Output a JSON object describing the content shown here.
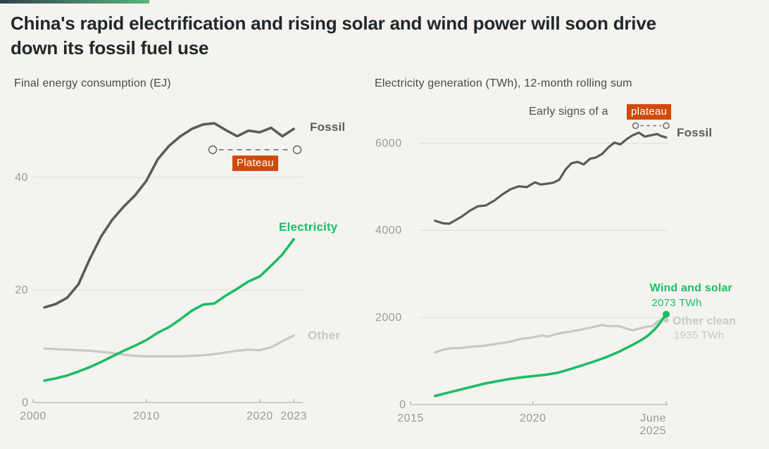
{
  "title": "China's rapid electrification and rising solar and wind power will soon drive\ndown its fossil fuel use",
  "colors": {
    "background": "#f4f3f0",
    "accent_from": "#32414d",
    "accent_to": "#56b77d",
    "gridline": "#dddcd9",
    "axis_line": "#a6a5a2",
    "axis_text": "#9b9a97",
    "annotation": "#6f6f6d",
    "fossil_line": "#5b5b5b",
    "green_line": "#1dbd63",
    "light_line": "#c9c8c5",
    "plateau_badge_bg": "#d14a0c",
    "plateau_badge_text": "#ffffff"
  },
  "charts": {
    "left": {
      "subtitle": "Final energy consumption (EJ)",
      "badge": "Plateau",
      "labels": {
        "fossil": "Fossil",
        "electricity": "Electricity",
        "other": "Other"
      }
    },
    "right": {
      "subtitle": "Electricity generation (TWh), 12-month rolling sum",
      "annotation_prefix": "Early signs of a",
      "badge": "plateau",
      "labels": {
        "fossil": "Fossil",
        "wind_solar": "Wind and solar",
        "wind_solar_value": "2073 TWh",
        "other_clean": "Other clean",
        "other_clean_value": "1935 TWh"
      }
    }
  },
  "chart_data": [
    {
      "type": "line",
      "title": "Final energy consumption (EJ)",
      "x_domain": [
        2000,
        2023.8
      ],
      "y_domain": [
        0,
        51.5
      ],
      "grid": true,
      "zero_label": "0",
      "x_ticks": [
        {
          "value": 2000,
          "label": "2000"
        },
        {
          "value": 2010,
          "label": "2010"
        },
        {
          "value": 2020,
          "label": "2020"
        },
        {
          "value": 2023,
          "label": "2023"
        }
      ],
      "y_ticks": [
        {
          "value": 20,
          "label": "20"
        },
        {
          "value": 40,
          "label": "40"
        }
      ],
      "plateau_line": {
        "x1": 2015.85,
        "x2": 2023.3,
        "y": 44.9,
        "r": 5.5,
        "dash": "7 6"
      },
      "series": [
        {
          "id": "other",
          "name": "Other",
          "color": "#c9c8c5",
          "width": 3.2,
          "points": [
            [
              2001,
              9.6
            ],
            [
              2002,
              9.5
            ],
            [
              2003,
              9.4
            ],
            [
              2004,
              9.3
            ],
            [
              2005,
              9.2
            ],
            [
              2006,
              9.0
            ],
            [
              2007,
              8.8
            ],
            [
              2008,
              8.5
            ],
            [
              2009,
              8.3
            ],
            [
              2010,
              8.2
            ],
            [
              2011,
              8.2
            ],
            [
              2012,
              8.2
            ],
            [
              2013,
              8.2
            ],
            [
              2014,
              8.3
            ],
            [
              2015,
              8.4
            ],
            [
              2016,
              8.6
            ],
            [
              2017,
              8.9
            ],
            [
              2018,
              9.2
            ],
            [
              2019,
              9.4
            ],
            [
              2020,
              9.3
            ],
            [
              2021,
              9.8
            ],
            [
              2022,
              10.9
            ],
            [
              2023,
              11.9
            ]
          ]
        },
        {
          "id": "electricity",
          "name": "Electricity",
          "color": "#1dbd63",
          "width": 3.6,
          "points": [
            [
              2001,
              3.9
            ],
            [
              2002,
              4.3
            ],
            [
              2003,
              4.8
            ],
            [
              2004,
              5.5
            ],
            [
              2005,
              6.3
            ],
            [
              2006,
              7.2
            ],
            [
              2007,
              8.2
            ],
            [
              2008,
              9.2
            ],
            [
              2009,
              10.1
            ],
            [
              2010,
              11.1
            ],
            [
              2011,
              12.4
            ],
            [
              2012,
              13.4
            ],
            [
              2013,
              14.8
            ],
            [
              2014,
              16.3
            ],
            [
              2015,
              17.4
            ],
            [
              2016,
              17.6
            ],
            [
              2017,
              19.0
            ],
            [
              2018,
              20.2
            ],
            [
              2019,
              21.5
            ],
            [
              2020,
              22.4
            ],
            [
              2021,
              24.3
            ],
            [
              2022,
              26.3
            ],
            [
              2023,
              29.0
            ]
          ]
        },
        {
          "id": "fossil",
          "name": "Fossil",
          "color": "#5b5b5b",
          "width": 3.6,
          "points": [
            [
              2001,
              16.9
            ],
            [
              2002,
              17.5
            ],
            [
              2003,
              18.6
            ],
            [
              2004,
              21.0
            ],
            [
              2005,
              25.5
            ],
            [
              2006,
              29.5
            ],
            [
              2007,
              32.5
            ],
            [
              2008,
              34.8
            ],
            [
              2009,
              36.8
            ],
            [
              2010,
              39.4
            ],
            [
              2011,
              43.2
            ],
            [
              2012,
              45.6
            ],
            [
              2013,
              47.3
            ],
            [
              2014,
              48.6
            ],
            [
              2015,
              49.4
            ],
            [
              2016,
              49.6
            ],
            [
              2017,
              48.4
            ],
            [
              2018,
              47.3
            ],
            [
              2019,
              48.3
            ],
            [
              2020,
              48.0
            ],
            [
              2021,
              48.8
            ],
            [
              2022,
              47.3
            ],
            [
              2023,
              48.6
            ]
          ]
        }
      ]
    },
    {
      "type": "line",
      "title": "Electricity generation (TWh), 12-month rolling sum",
      "x_domain": [
        2015,
        2025.45
      ],
      "y_domain": [
        0,
        6700
      ],
      "grid": true,
      "zero_label": "0",
      "x_ticks": [
        {
          "value": 2015,
          "label": "2015"
        },
        {
          "value": 2020,
          "label": "2020"
        },
        {
          "value": 2025.45,
          "label": "June\n2025",
          "align": "end"
        }
      ],
      "y_ticks": [
        {
          "value": 2000,
          "label": "2000"
        },
        {
          "value": 4000,
          "label": "4000"
        },
        {
          "value": 6000,
          "label": "6000"
        }
      ],
      "plateau_line": {
        "x1": 2024.2,
        "x2": 2025.45,
        "y": 6400,
        "r": 4,
        "dash": "4 5"
      },
      "series": [
        {
          "id": "other-clean",
          "name": "Other clean",
          "color": "#c9c8c5",
          "width": 3.2,
          "end_dot": 3.5,
          "points": [
            [
              2016,
              1200
            ],
            [
              2016.4,
              1270
            ],
            [
              2016.7,
              1300
            ],
            [
              2017,
              1295
            ],
            [
              2017.5,
              1330
            ],
            [
              2018,
              1350
            ],
            [
              2018.5,
              1395
            ],
            [
              2019,
              1435
            ],
            [
              2019.5,
              1505
            ],
            [
              2020,
              1545
            ],
            [
              2020.4,
              1590
            ],
            [
              2020.6,
              1560
            ],
            [
              2021,
              1625
            ],
            [
              2021.5,
              1675
            ],
            [
              2022,
              1725
            ],
            [
              2022.5,
              1785
            ],
            [
              2022.83,
              1830
            ],
            [
              2023.08,
              1800
            ],
            [
              2023.5,
              1805
            ],
            [
              2023.83,
              1745
            ],
            [
              2024.08,
              1705
            ],
            [
              2024.33,
              1745
            ],
            [
              2024.67,
              1790
            ],
            [
              2024.92,
              1805
            ],
            [
              2025.1,
              1910
            ],
            [
              2025.3,
              1960
            ],
            [
              2025.45,
              1935
            ]
          ]
        },
        {
          "id": "wind-solar",
          "name": "Wind and solar",
          "color": "#1dbd63",
          "width": 3.6,
          "end_dot": 5,
          "points": [
            [
              2016,
              200
            ],
            [
              2016.5,
              270
            ],
            [
              2017,
              340
            ],
            [
              2017.5,
              410
            ],
            [
              2018,
              480
            ],
            [
              2018.5,
              535
            ],
            [
              2019,
              585
            ],
            [
              2019.5,
              625
            ],
            [
              2020,
              655
            ],
            [
              2020.5,
              685
            ],
            [
              2021,
              730
            ],
            [
              2021.5,
              810
            ],
            [
              2022,
              900
            ],
            [
              2022.5,
              990
            ],
            [
              2023,
              1090
            ],
            [
              2023.5,
              1210
            ],
            [
              2024,
              1350
            ],
            [
              2024.4,
              1470
            ],
            [
              2024.7,
              1580
            ],
            [
              2025,
              1740
            ],
            [
              2025.2,
              1880
            ],
            [
              2025.45,
              2073
            ]
          ]
        },
        {
          "id": "fossil",
          "name": "Fossil",
          "color": "#5b5b5b",
          "width": 3.2,
          "points": [
            [
              2016,
              4220
            ],
            [
              2016.33,
              4160
            ],
            [
              2016.58,
              4150
            ],
            [
              2016.83,
              4230
            ],
            [
              2017.08,
              4310
            ],
            [
              2017.42,
              4450
            ],
            [
              2017.75,
              4550
            ],
            [
              2018.08,
              4570
            ],
            [
              2018.42,
              4680
            ],
            [
              2018.75,
              4820
            ],
            [
              2019.08,
              4940
            ],
            [
              2019.42,
              5010
            ],
            [
              2019.75,
              4990
            ],
            [
              2020.08,
              5100
            ],
            [
              2020.33,
              5050
            ],
            [
              2020.58,
              5070
            ],
            [
              2020.83,
              5090
            ],
            [
              2021.08,
              5160
            ],
            [
              2021.33,
              5390
            ],
            [
              2021.58,
              5540
            ],
            [
              2021.83,
              5570
            ],
            [
              2022.08,
              5510
            ],
            [
              2022.33,
              5640
            ],
            [
              2022.58,
              5670
            ],
            [
              2022.83,
              5750
            ],
            [
              2023.08,
              5900
            ],
            [
              2023.33,
              6010
            ],
            [
              2023.58,
              5970
            ],
            [
              2023.83,
              6090
            ],
            [
              2024.08,
              6180
            ],
            [
              2024.33,
              6240
            ],
            [
              2024.58,
              6150
            ],
            [
              2024.83,
              6180
            ],
            [
              2025.08,
              6210
            ],
            [
              2025.25,
              6160
            ],
            [
              2025.45,
              6130
            ]
          ]
        }
      ]
    }
  ]
}
